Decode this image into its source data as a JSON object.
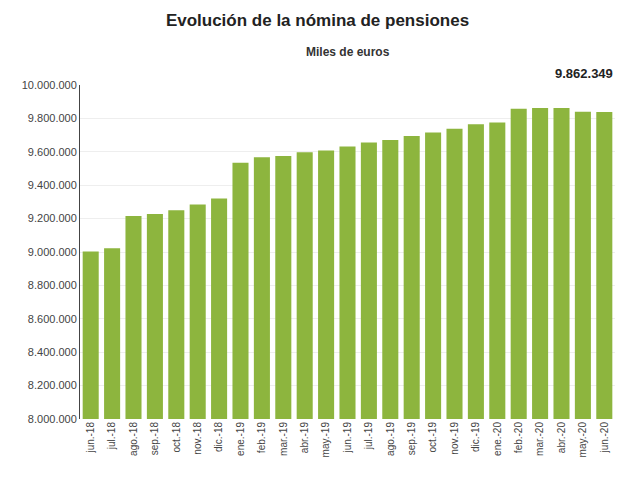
{
  "chart_data": {
    "type": "bar",
    "title": "Evolución de la nómina de pensiones",
    "subtitle": "Miles de euros",
    "annotation": "9.862.349",
    "categories": [
      "jun.-18",
      "jul.-18",
      "ago.-18",
      "sep.-18",
      "oct.-18",
      "nov.-18",
      "dic.-18",
      "ene.-19",
      "feb.-19",
      "mar.-19",
      "abr.-19",
      "may.-19",
      "jun.-19",
      "jul.-19",
      "ago.-19",
      "sep.-19",
      "oct.-19",
      "nov.-19",
      "dic.-19",
      "ene.-20",
      "feb.-20",
      "mar.-20",
      "abr.-20",
      "may.-20",
      "jun.-20"
    ],
    "values": [
      9003000,
      9022000,
      9215000,
      9228000,
      9250000,
      9285000,
      9320000,
      9535000,
      9568000,
      9575000,
      9598000,
      9608000,
      9632000,
      9655000,
      9670000,
      9695000,
      9715000,
      9738000,
      9765000,
      9775000,
      9858000,
      9862000,
      9862349,
      9840000,
      9838000
    ],
    "color": "#8db53e",
    "ylim": [
      8000000,
      10000000
    ],
    "yticks": [
      {
        "value": 8000000,
        "label": "8.000.000"
      },
      {
        "value": 8200000,
        "label": "8.200.000"
      },
      {
        "value": 8400000,
        "label": "8.400.000"
      },
      {
        "value": 8600000,
        "label": "8.600.000"
      },
      {
        "value": 8800000,
        "label": "8.800.000"
      },
      {
        "value": 9000000,
        "label": "9.000.000"
      },
      {
        "value": 9200000,
        "label": "9.200.000"
      },
      {
        "value": 9400000,
        "label": "9.400.000"
      },
      {
        "value": 9600000,
        "label": "9.600.000"
      },
      {
        "value": 9800000,
        "label": "9.800.000"
      },
      {
        "value": 10000000,
        "label": "10.000.000"
      }
    ],
    "grid": true
  }
}
